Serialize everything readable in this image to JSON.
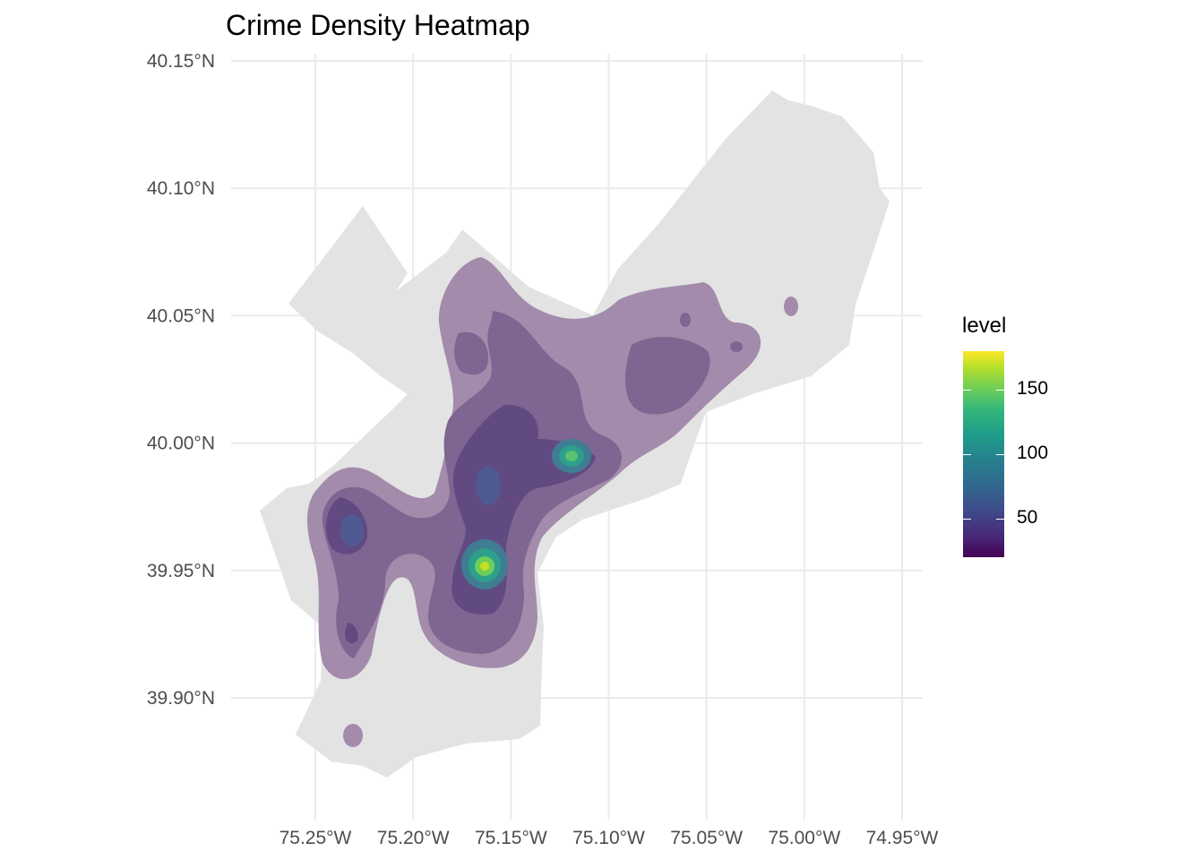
{
  "chart_data": {
    "type": "heatmap",
    "title": "Crime Density Heatmap",
    "xlabel": "",
    "ylabel": "",
    "x_ticks": [
      "75.25°W",
      "75.20°W",
      "75.15°W",
      "75.10°W",
      "75.05°W",
      "75.00°W",
      "74.95°W"
    ],
    "y_ticks": [
      "40.15°N",
      "40.10°N",
      "40.05°N",
      "40.00°N",
      "39.95°N",
      "39.90°N"
    ],
    "x_tick_values": [
      -75.25,
      -75.2,
      -75.15,
      -75.1,
      -75.05,
      -75.0,
      -74.95
    ],
    "y_tick_values": [
      40.15,
      40.1,
      40.05,
      40.0,
      39.95,
      39.9
    ],
    "xlim": [
      -75.28,
      -74.94
    ],
    "ylim": [
      39.865,
      40.152
    ],
    "grid": true,
    "base_map_color": "#e3e3e3",
    "density_hotspots": [
      {
        "lon": -75.163,
        "lat": 39.951,
        "peak_level": 180
      },
      {
        "lon": -75.119,
        "lat": 39.994,
        "peak_level": 140
      },
      {
        "lon": -75.232,
        "lat": 39.965,
        "peak_level": 70
      },
      {
        "lon": -75.157,
        "lat": 39.983,
        "peak_level": 60
      },
      {
        "lon": -75.229,
        "lat": 39.926,
        "peak_level": 40
      },
      {
        "lon": -75.19,
        "lat": 39.955,
        "peak_level": 30
      },
      {
        "lon": -75.167,
        "lat": 40.034,
        "peak_level": 30
      },
      {
        "lon": -75.058,
        "lat": 40.031,
        "peak_level": 35
      }
    ],
    "legend": {
      "title": "level",
      "position": "right",
      "ticks": [
        "150",
        "100",
        "50"
      ],
      "tick_values": [
        150,
        100,
        50
      ],
      "range": [
        20,
        180
      ],
      "palette": "viridis"
    }
  }
}
